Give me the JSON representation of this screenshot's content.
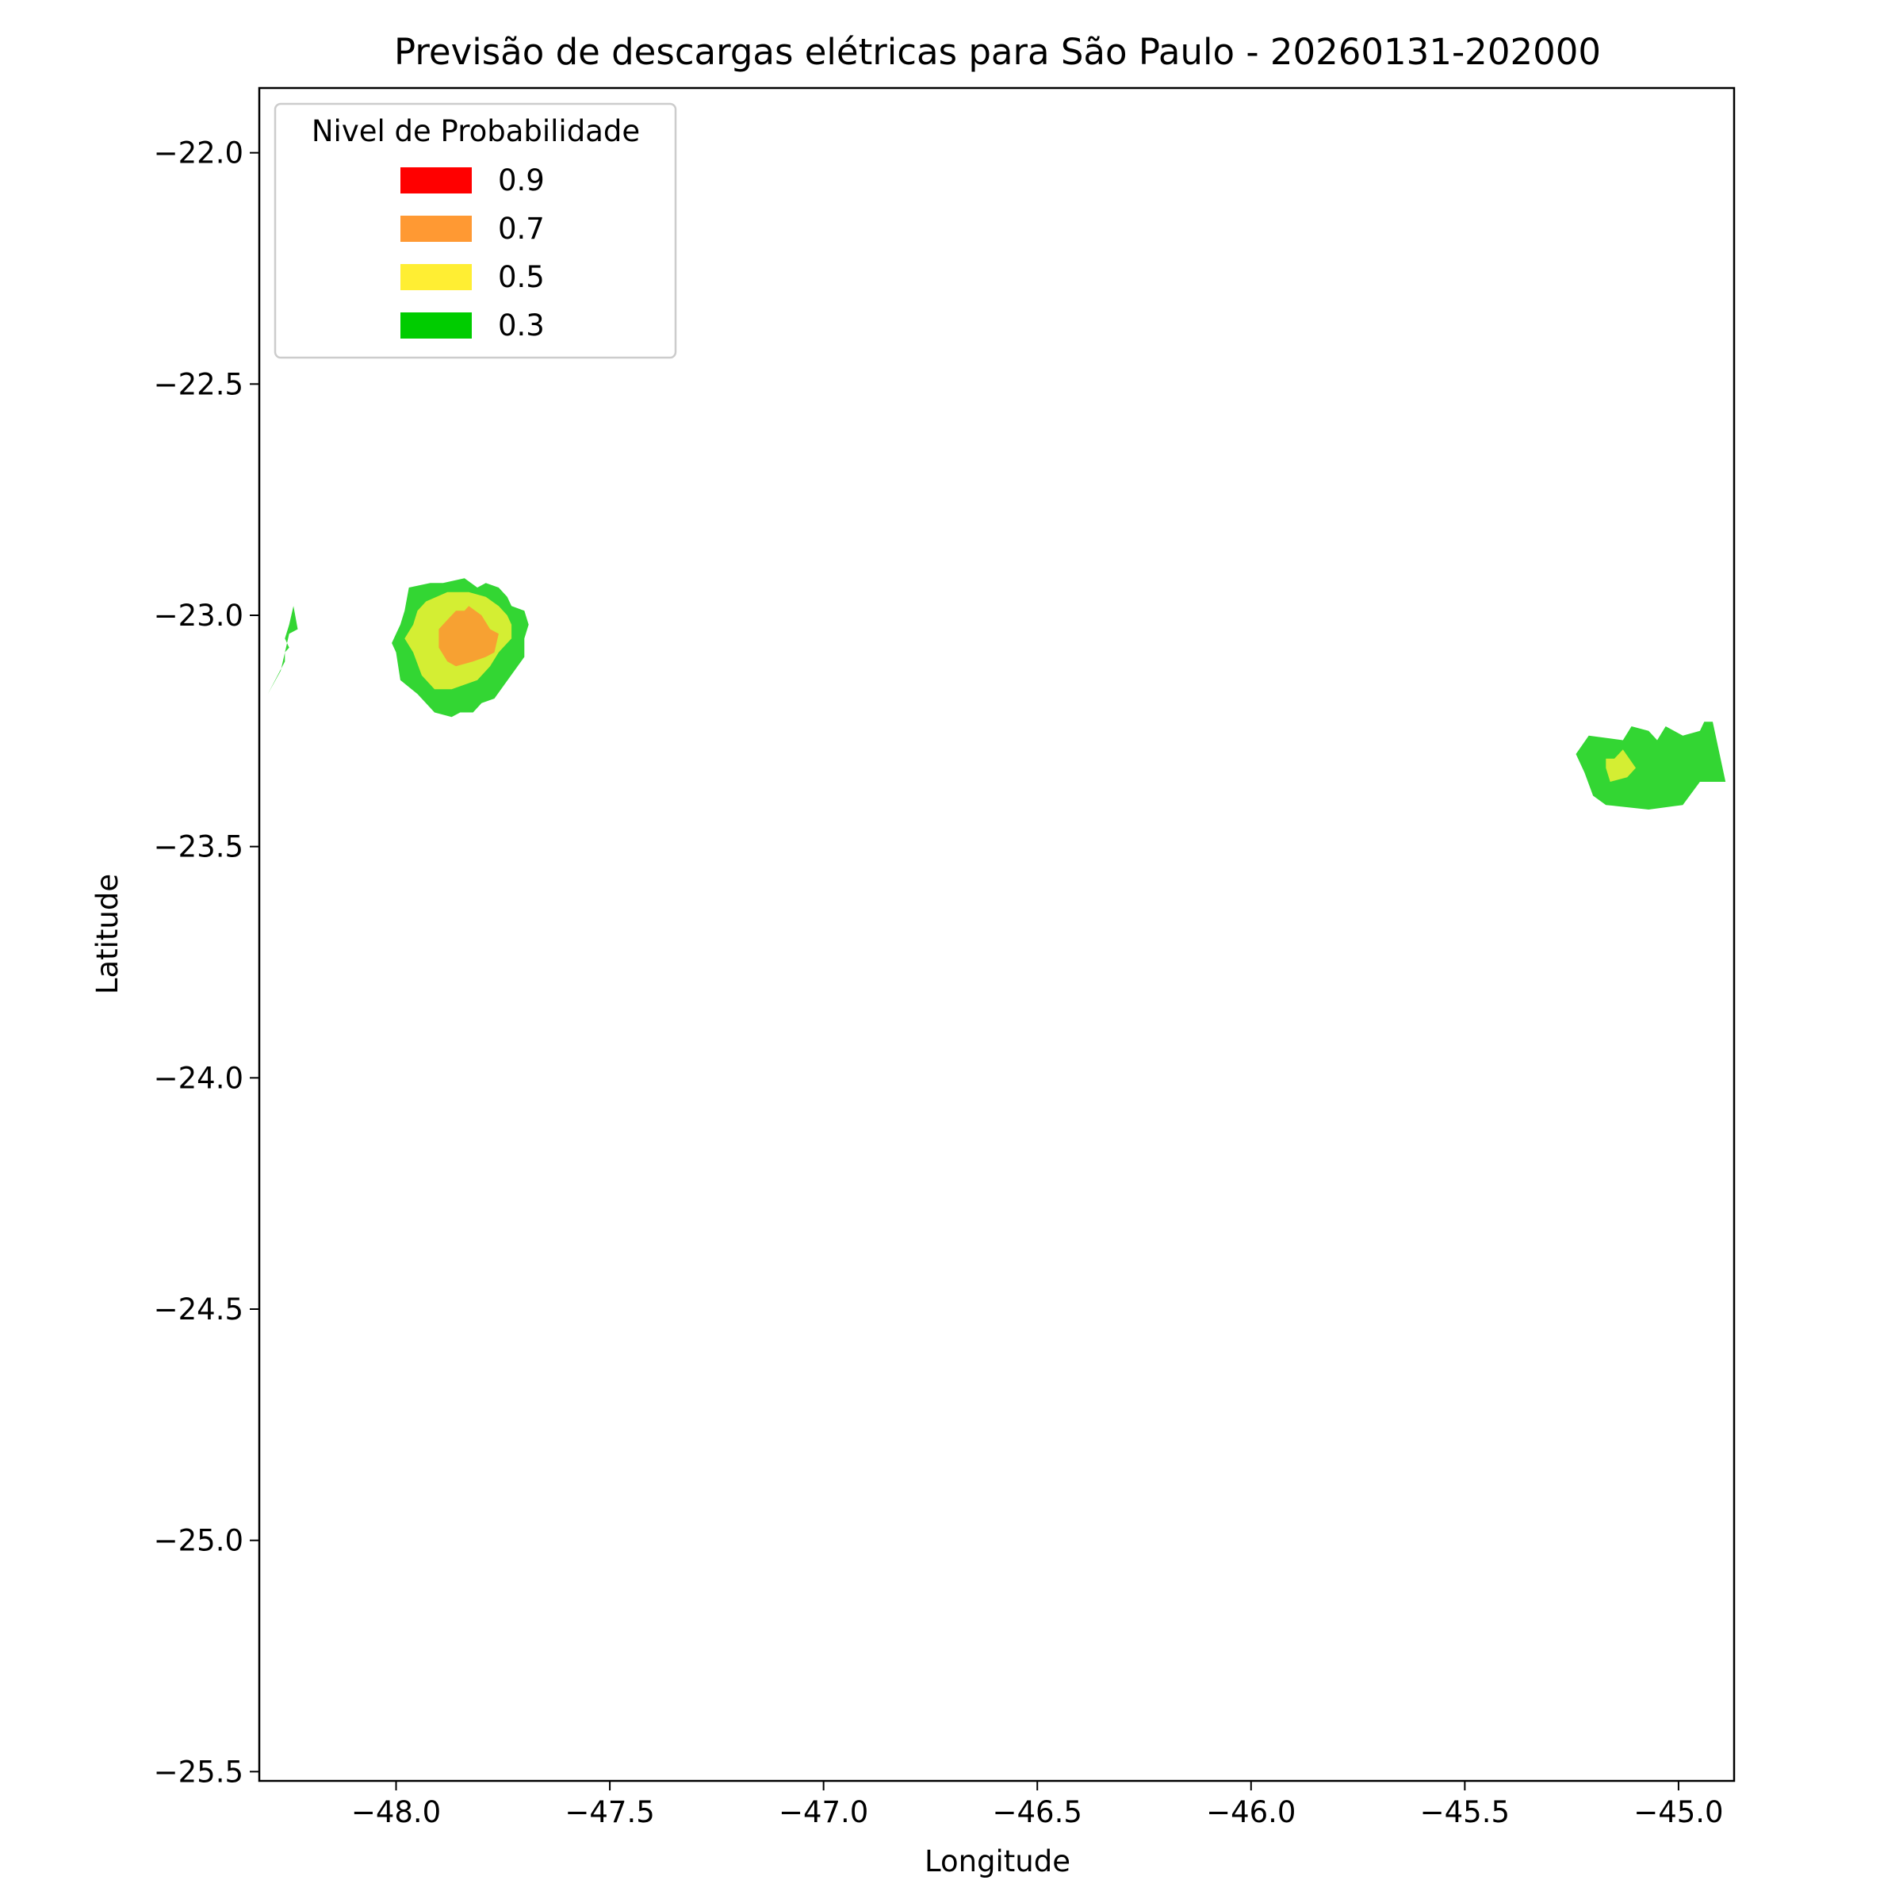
{
  "chart_data": {
    "type": "contour",
    "title": "Previsão de descargas elétricas para São Paulo - 20260131-202000",
    "xlabel": "Longitude",
    "ylabel": "Latitude",
    "xlim": [
      -48.32,
      -44.87
    ],
    "ylim": [
      -25.52,
      -21.86
    ],
    "xticks": [
      -48.0,
      -47.5,
      -47.0,
      -46.5,
      -46.0,
      -45.5,
      -45.0
    ],
    "xtick_labels": [
      "−48.0",
      "−47.5",
      "−47.0",
      "−46.5",
      "−46.0",
      "−45.5",
      "−45.0"
    ],
    "yticks": [
      -22.0,
      -22.5,
      -23.0,
      -23.5,
      -24.0,
      -24.5,
      -25.0,
      -25.5
    ],
    "ytick_labels": [
      "−22.0",
      "−22.5",
      "−23.0",
      "−23.5",
      "−24.0",
      "−24.5",
      "−25.0",
      "−25.5"
    ],
    "legend": {
      "title": "Nivel de Probabilidade",
      "placement": "upper-left",
      "entries": [
        {
          "label": "0.9",
          "color": "#ff0000"
        },
        {
          "label": "0.7",
          "color": "#ff9933"
        },
        {
          "label": "0.5",
          "color": "#ffee33"
        },
        {
          "label": "0.3",
          "color": "#00cc00"
        }
      ]
    },
    "fill_colors": {
      "0.3": "#33d633",
      "0.5": "#d4ee33",
      "0.7": "#f7a132"
    },
    "regions": [
      {
        "level": "0.3",
        "name": "west-edge-sliver",
        "points": [
          [
            -48.3,
            -23.17
          ],
          [
            -48.26,
            -23.1
          ],
          [
            -48.26,
            -23.08
          ],
          [
            -48.25,
            -23.07
          ],
          [
            -48.26,
            -23.05
          ],
          [
            -48.25,
            -23.02
          ],
          [
            -48.24,
            -22.98
          ],
          [
            -48.23,
            -23.03
          ],
          [
            -48.25,
            -23.04
          ],
          [
            -48.27,
            -23.12
          ],
          [
            -48.3,
            -23.17
          ]
        ]
      },
      {
        "level": "0.3",
        "name": "west-cell-outer",
        "points": [
          [
            -47.97,
            -22.94
          ],
          [
            -47.92,
            -22.93
          ],
          [
            -47.89,
            -22.93
          ],
          [
            -47.84,
            -22.92
          ],
          [
            -47.81,
            -22.94
          ],
          [
            -47.79,
            -22.93
          ],
          [
            -47.76,
            -22.94
          ],
          [
            -47.74,
            -22.96
          ],
          [
            -47.73,
            -22.98
          ],
          [
            -47.7,
            -22.99
          ],
          [
            -47.69,
            -23.02
          ],
          [
            -47.7,
            -23.05
          ],
          [
            -47.7,
            -23.09
          ],
          [
            -47.77,
            -23.18
          ],
          [
            -47.8,
            -23.19
          ],
          [
            -47.82,
            -23.21
          ],
          [
            -47.85,
            -23.21
          ],
          [
            -47.87,
            -23.22
          ],
          [
            -47.91,
            -23.21
          ],
          [
            -47.95,
            -23.17
          ],
          [
            -47.99,
            -23.14
          ],
          [
            -48.0,
            -23.08
          ],
          [
            -48.01,
            -23.06
          ],
          [
            -48.0,
            -23.04
          ],
          [
            -47.99,
            -23.02
          ],
          [
            -47.98,
            -22.99
          ],
          [
            -47.97,
            -22.94
          ]
        ]
      },
      {
        "level": "0.5",
        "name": "west-cell-middle",
        "points": [
          [
            -47.88,
            -22.95
          ],
          [
            -47.83,
            -22.95
          ],
          [
            -47.79,
            -22.96
          ],
          [
            -47.76,
            -22.98
          ],
          [
            -47.74,
            -23.0
          ],
          [
            -47.73,
            -23.02
          ],
          [
            -47.73,
            -23.05
          ],
          [
            -47.76,
            -23.08
          ],
          [
            -47.78,
            -23.11
          ],
          [
            -47.81,
            -23.14
          ],
          [
            -47.87,
            -23.16
          ],
          [
            -47.91,
            -23.16
          ],
          [
            -47.94,
            -23.13
          ],
          [
            -47.96,
            -23.08
          ],
          [
            -47.98,
            -23.05
          ],
          [
            -47.96,
            -23.02
          ],
          [
            -47.95,
            -22.99
          ],
          [
            -47.93,
            -22.97
          ],
          [
            -47.88,
            -22.95
          ]
        ]
      },
      {
        "level": "0.7",
        "name": "west-cell-core",
        "points": [
          [
            -47.86,
            -22.99
          ],
          [
            -47.84,
            -22.99
          ],
          [
            -47.83,
            -22.98
          ],
          [
            -47.8,
            -23.0
          ],
          [
            -47.78,
            -23.03
          ],
          [
            -47.76,
            -23.04
          ],
          [
            -47.77,
            -23.08
          ],
          [
            -47.79,
            -23.09
          ],
          [
            -47.82,
            -23.1
          ],
          [
            -47.86,
            -23.11
          ],
          [
            -47.88,
            -23.1
          ],
          [
            -47.9,
            -23.07
          ],
          [
            -47.9,
            -23.03
          ],
          [
            -47.88,
            -23.01
          ],
          [
            -47.86,
            -22.99
          ]
        ]
      },
      {
        "level": "0.3",
        "name": "east-cell-outer",
        "points": [
          [
            -45.21,
            -23.26
          ],
          [
            -45.13,
            -23.27
          ],
          [
            -45.11,
            -23.24
          ],
          [
            -45.07,
            -23.25
          ],
          [
            -45.05,
            -23.27
          ],
          [
            -45.03,
            -23.24
          ],
          [
            -44.99,
            -23.26
          ],
          [
            -44.95,
            -23.25
          ],
          [
            -44.94,
            -23.23
          ],
          [
            -44.92,
            -23.23
          ],
          [
            -44.89,
            -23.36
          ],
          [
            -44.95,
            -23.36
          ],
          [
            -44.99,
            -23.41
          ],
          [
            -45.07,
            -23.42
          ],
          [
            -45.17,
            -23.41
          ],
          [
            -45.2,
            -23.39
          ],
          [
            -45.22,
            -23.34
          ],
          [
            -45.24,
            -23.3
          ],
          [
            -45.21,
            -23.26
          ]
        ]
      },
      {
        "level": "0.5",
        "name": "east-cell-middle",
        "points": [
          [
            -45.17,
            -23.31
          ],
          [
            -45.15,
            -23.31
          ],
          [
            -45.13,
            -23.29
          ],
          [
            -45.1,
            -23.33
          ],
          [
            -45.12,
            -23.35
          ],
          [
            -45.16,
            -23.36
          ],
          [
            -45.17,
            -23.33
          ],
          [
            -45.17,
            -23.31
          ]
        ]
      }
    ]
  }
}
